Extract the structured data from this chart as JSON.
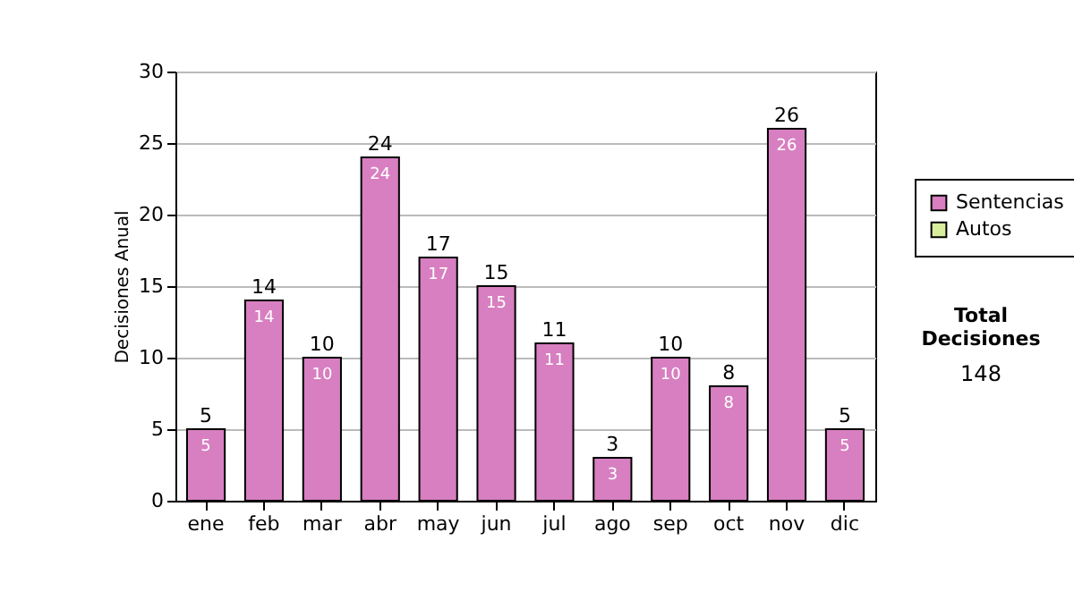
{
  "chart_data": {
    "type": "bar",
    "ylabel": "Decisiones Anual",
    "categories": [
      "ene",
      "feb",
      "mar",
      "abr",
      "may",
      "jun",
      "jul",
      "ago",
      "sep",
      "oct",
      "nov",
      "dic"
    ],
    "series": [
      {
        "name": "Sentencias",
        "color": "#d77fc0",
        "values": [
          5,
          14,
          10,
          24,
          17,
          15,
          11,
          3,
          10,
          8,
          26,
          5
        ]
      },
      {
        "name": "Autos",
        "color": "#d9ee9c",
        "values": [
          null,
          null,
          null,
          null,
          null,
          null,
          null,
          null,
          null,
          null,
          null,
          null
        ]
      }
    ],
    "stacked": true,
    "data_labels": true,
    "totals": [
      "5",
      "14",
      "10",
      "24",
      "17",
      "15",
      "11",
      "3",
      "10",
      "8",
      "26",
      "5"
    ],
    "ylim": [
      0,
      30
    ],
    "yticks": [
      0,
      5,
      10,
      15,
      20,
      25,
      30
    ],
    "grid": "y",
    "legend": "right",
    "annotations": [
      "Total Decisiones",
      "148"
    ]
  }
}
